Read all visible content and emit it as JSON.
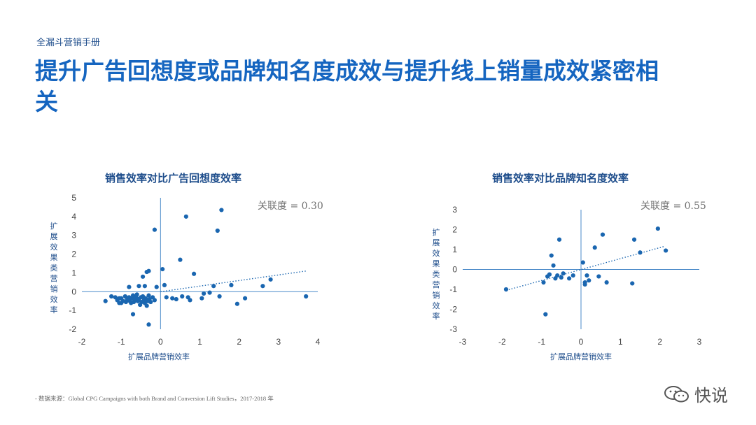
{
  "eyebrow": "全漏斗营销手册",
  "title": "提升广告回想度或品牌知名度成效与提升线上销量成效紧密相关",
  "source": "- 数据来源：Global CPG Campaigns with both Brand and Conversion Lift Studies，2017-2018 年",
  "watermark": {
    "text": "快说",
    "icon": "wechat-icon"
  },
  "colors": {
    "title": "#1565c0",
    "points": "#1a66b0",
    "axis": "#4a8ac9"
  },
  "chart_data": [
    {
      "type": "scatter",
      "title": "销售效率对比广告回想度效率",
      "xlabel": "扩展品牌营销效率",
      "ylabel": "扩展效果类营销效率",
      "annotation": "关联度 = 0.30",
      "xlim": [
        -2,
        4
      ],
      "ylim": [
        -2,
        5
      ],
      "xticks": [
        -2,
        -1,
        0,
        1,
        2,
        3,
        4
      ],
      "yticks": [
        -2,
        -1,
        0,
        1,
        2,
        3,
        4,
        5
      ],
      "grid": false,
      "trendline": {
        "x": [
          0,
          3.7
        ],
        "y": [
          0.0,
          1.1
        ],
        "style": "dotted"
      },
      "points": [
        [
          -1.4,
          -0.5
        ],
        [
          -1.25,
          -0.25
        ],
        [
          -1.15,
          -0.3
        ],
        [
          -1.1,
          -0.45
        ],
        [
          -1.05,
          -0.6
        ],
        [
          -1.0,
          -0.35
        ],
        [
          -0.95,
          -0.5
        ],
        [
          -0.9,
          -0.25
        ],
        [
          -0.88,
          -0.55
        ],
        [
          -0.85,
          -0.4
        ],
        [
          -0.8,
          -0.3
        ],
        [
          -0.78,
          -0.5
        ],
        [
          -0.75,
          -0.6
        ],
        [
          -0.72,
          -0.35
        ],
        [
          -0.7,
          -0.2
        ],
        [
          -0.68,
          -0.55
        ],
        [
          -0.65,
          -0.45
        ],
        [
          -0.62,
          -0.3
        ],
        [
          -0.6,
          -0.15
        ],
        [
          -0.58,
          -0.5
        ],
        [
          -0.55,
          -0.4
        ],
        [
          -0.52,
          -0.7
        ],
        [
          -0.5,
          -0.3
        ],
        [
          -0.48,
          -0.55
        ],
        [
          -0.45,
          -0.25
        ],
        [
          -0.42,
          -0.45
        ],
        [
          -0.4,
          -0.6
        ],
        [
          -0.38,
          -0.35
        ],
        [
          -0.35,
          -0.75
        ],
        [
          -0.32,
          -0.5
        ],
        [
          -0.3,
          -0.2
        ],
        [
          -0.28,
          -0.4
        ],
        [
          -0.25,
          -0.55
        ],
        [
          -0.2,
          -0.3
        ],
        [
          -0.15,
          -0.45
        ],
        [
          -0.8,
          0.25
        ],
        [
          -0.55,
          0.3
        ],
        [
          -0.45,
          0.8
        ],
        [
          -0.35,
          1.05
        ],
        [
          -0.4,
          0.3
        ],
        [
          -0.3,
          1.1
        ],
        [
          -0.1,
          0.25
        ],
        [
          0.05,
          1.2
        ],
        [
          0.1,
          0.35
        ],
        [
          -0.15,
          3.3
        ],
        [
          -1.05,
          -0.35
        ],
        [
          -1.0,
          -0.6
        ],
        [
          -0.7,
          -1.2
        ],
        [
          -0.3,
          -1.75
        ],
        [
          0.15,
          -0.3
        ],
        [
          0.3,
          -0.35
        ],
        [
          0.4,
          -0.4
        ],
        [
          0.5,
          1.7
        ],
        [
          0.65,
          4.0
        ],
        [
          0.85,
          0.95
        ],
        [
          0.55,
          -0.25
        ],
        [
          0.7,
          -0.3
        ],
        [
          0.75,
          -0.45
        ],
        [
          1.1,
          -0.1
        ],
        [
          1.05,
          -0.35
        ],
        [
          1.25,
          -0.05
        ],
        [
          1.35,
          0.3
        ],
        [
          1.45,
          3.25
        ],
        [
          1.55,
          4.35
        ],
        [
          1.5,
          -0.25
        ],
        [
          1.8,
          0.35
        ],
        [
          1.95,
          -0.65
        ],
        [
          2.15,
          -0.35
        ],
        [
          2.6,
          0.3
        ],
        [
          2.8,
          0.65
        ],
        [
          3.7,
          -0.25
        ]
      ]
    },
    {
      "type": "scatter",
      "title": "销售效率对比品牌知名度效率",
      "xlabel": "扩展品牌营销效率",
      "ylabel": "扩展效果类营销效率",
      "annotation": "关联度 = 0.55",
      "xlim": [
        -3,
        3
      ],
      "ylim": [
        -3,
        3
      ],
      "xticks": [
        -3,
        -2,
        -1,
        0,
        1,
        2,
        3
      ],
      "yticks": [
        -3,
        -2,
        -1,
        0,
        1,
        2,
        3
      ],
      "grid": false,
      "trendline": {
        "x": [
          -1.9,
          2.1
        ],
        "y": [
          -1.05,
          1.15
        ],
        "style": "dotted"
      },
      "points": [
        [
          -1.9,
          -1.0
        ],
        [
          -0.9,
          -2.25
        ],
        [
          -0.85,
          -0.35
        ],
        [
          -0.8,
          -0.25
        ],
        [
          -0.75,
          0.7
        ],
        [
          -0.7,
          0.2
        ],
        [
          -0.65,
          -0.45
        ],
        [
          -0.6,
          -0.3
        ],
        [
          -0.55,
          1.5
        ],
        [
          -0.5,
          -0.4
        ],
        [
          -0.45,
          -0.2
        ],
        [
          -0.3,
          -0.45
        ],
        [
          -0.2,
          -0.3
        ],
        [
          0.05,
          0.35
        ],
        [
          0.1,
          -0.65
        ],
        [
          0.15,
          -0.3
        ],
        [
          0.2,
          -0.55
        ],
        [
          0.35,
          1.1
        ],
        [
          0.45,
          -0.35
        ],
        [
          0.55,
          1.75
        ],
        [
          0.65,
          -0.65
        ],
        [
          1.3,
          -0.7
        ],
        [
          1.35,
          1.5
        ],
        [
          1.5,
          0.85
        ],
        [
          1.95,
          2.05
        ],
        [
          2.15,
          0.95
        ],
        [
          0.1,
          -0.75
        ],
        [
          -0.95,
          -0.65
        ]
      ]
    }
  ]
}
